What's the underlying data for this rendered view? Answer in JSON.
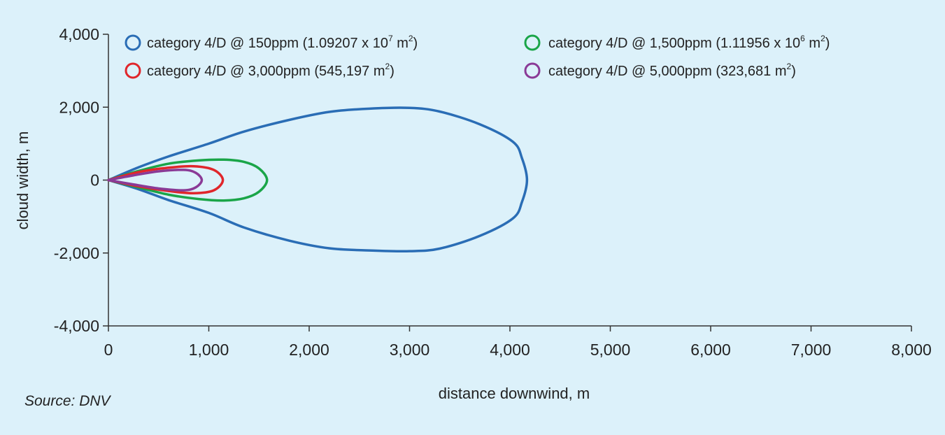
{
  "chart_data": {
    "type": "line",
    "title": "",
    "xlabel": "distance downwind, m",
    "ylabel": "cloud width, m",
    "xlim": [
      0,
      8000
    ],
    "ylim": [
      -4000,
      4000
    ],
    "x_ticks": [
      0,
      1000,
      2000,
      3000,
      4000,
      5000,
      6000,
      7000,
      8000
    ],
    "x_tick_labels": [
      "0",
      "1,000",
      "2,000",
      "3,000",
      "4,000",
      "5,000",
      "6,000",
      "7,000",
      "8,000"
    ],
    "y_ticks": [
      4000,
      2000,
      0,
      -2000,
      -4000
    ],
    "y_tick_labels": [
      "4,000",
      "2,000",
      "0",
      "-2,000",
      "-4,000"
    ],
    "grid": false,
    "legend_position": "top",
    "source": "Source: DNV",
    "series": [
      {
        "name": "category 4/D @ 150ppm (1.09207 x 10⁷ m²)",
        "legend_main": "category 4/D @ 150ppm (1.09207 x 10",
        "legend_sup1": "7",
        "legend_mid": " m",
        "legend_sup2": "2",
        "legend_end": ")",
        "color": "#2a6db5",
        "x": [
          0,
          300,
          600,
          1000,
          1350,
          1800,
          2200,
          2600,
          3000,
          3300,
          3700,
          4030,
          4120,
          4170,
          4120,
          4030,
          3700,
          3300,
          3000,
          2600,
          2200,
          1800,
          1350,
          1000,
          600,
          300,
          0
        ],
        "y": [
          0,
          350,
          650,
          1000,
          1330,
          1650,
          1870,
          1960,
          1980,
          1880,
          1530,
          1050,
          600,
          0,
          -600,
          -1050,
          -1530,
          -1880,
          -1950,
          -1930,
          -1870,
          -1660,
          -1300,
          -900,
          -550,
          -250,
          0
        ]
      },
      {
        "name": "category 4/D @ 1,500ppm (1.11956 x 10⁶ m²)",
        "legend_main": "category 4/D @ 1,500ppm (1.11956 x 10",
        "legend_sup1": "6",
        "legend_mid": " m",
        "legend_sup2": "2",
        "legend_end": ")",
        "color": "#1aa548",
        "x": [
          0,
          300,
          600,
          900,
          1150,
          1350,
          1500,
          1580,
          1500,
          1350,
          1150,
          900,
          600,
          300,
          0
        ],
        "y": [
          0,
          250,
          450,
          540,
          560,
          500,
          320,
          0,
          -320,
          -500,
          -560,
          -520,
          -400,
          -200,
          0
        ]
      },
      {
        "name": "category 4/D @ 3,000ppm (545,197 m²)",
        "legend_main": "category 4/D @ 3,000ppm (545,197 m",
        "legend_sup1": "",
        "legend_mid": "",
        "legend_sup2": "2",
        "legend_end": ")",
        "color": "#e0262b",
        "x": [
          0,
          300,
          600,
          850,
          1050,
          1140,
          1050,
          850,
          600,
          300,
          0
        ],
        "y": [
          0,
          220,
          340,
          380,
          280,
          0,
          -280,
          -360,
          -300,
          -170,
          0
        ]
      },
      {
        "name": "category 4/D @ 5,000ppm (323,681 m²)",
        "legend_main": "category 4/D @ 5,000ppm (323,681 m",
        "legend_sup1": "",
        "legend_mid": "",
        "legend_sup2": "2",
        "legend_end": ")",
        "color": "#8a3a96",
        "x": [
          0,
          250,
          500,
          750,
          870,
          930,
          870,
          750,
          500,
          250,
          0
        ],
        "y": [
          0,
          130,
          240,
          280,
          200,
          0,
          -200,
          -280,
          -230,
          -120,
          0
        ]
      }
    ]
  }
}
